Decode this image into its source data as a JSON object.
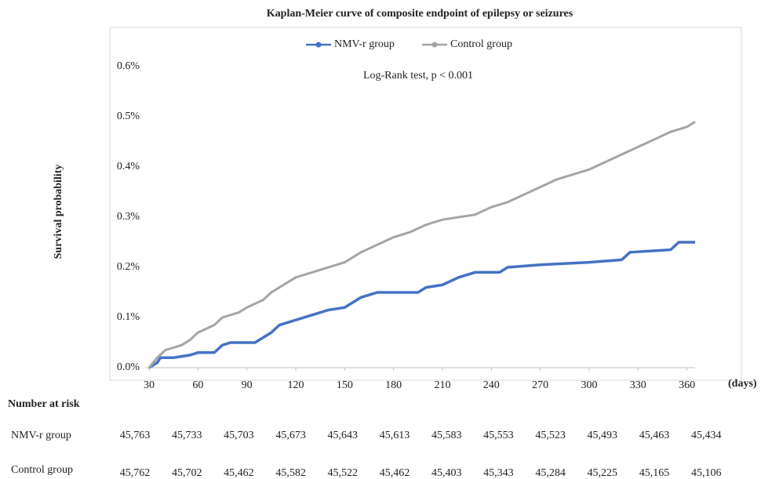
{
  "chart_data": {
    "type": "line",
    "title": "Kaplan-Meier curve of composite endpoint of epilepsy or seizures",
    "y_label": "Survival probability",
    "x_label": "(days)",
    "annotation": "Log-Rank test, p < 0.001",
    "legend": "top",
    "xlim": [
      30,
      365
    ],
    "xticks": [
      30,
      60,
      90,
      120,
      150,
      180,
      210,
      240,
      270,
      300,
      330,
      360
    ],
    "ylim": [
      0,
      0.6
    ],
    "yticks": [
      {
        "value": 0,
        "label": "0.0%"
      },
      {
        "value": 0.1,
        "label": "0.1%"
      },
      {
        "value": 0.2,
        "label": "0.2%"
      },
      {
        "value": 0.3,
        "label": "0.3%"
      },
      {
        "value": 0.4,
        "label": "0.4%"
      },
      {
        "value": 0.5,
        "label": "0.5%"
      },
      {
        "value": 0.6,
        "label": "0.6%"
      }
    ],
    "series": [
      {
        "name": "NMV-r  group",
        "color": "#4472c4",
        "x": [
          30,
          35,
          37,
          45,
          55,
          60,
          70,
          75,
          80,
          95,
          100,
          105,
          110,
          120,
          130,
          140,
          150,
          160,
          170,
          195,
          200,
          210,
          220,
          230,
          245,
          250,
          270,
          300,
          320,
          325,
          350,
          355,
          365
        ],
        "values": [
          0,
          0.01,
          0.02,
          0.02,
          0.025,
          0.03,
          0.03,
          0.045,
          0.05,
          0.05,
          0.06,
          0.07,
          0.085,
          0.095,
          0.105,
          0.115,
          0.12,
          0.14,
          0.15,
          0.15,
          0.16,
          0.165,
          0.18,
          0.19,
          0.19,
          0.2,
          0.205,
          0.21,
          0.215,
          0.23,
          0.235,
          0.25,
          0.25
        ]
      },
      {
        "name": "Control group",
        "color": "#a5a5a5",
        "x": [
          30,
          35,
          40,
          50,
          55,
          60,
          70,
          75,
          85,
          90,
          100,
          105,
          115,
          120,
          130,
          140,
          150,
          160,
          170,
          180,
          190,
          200,
          210,
          230,
          240,
          250,
          260,
          270,
          280,
          290,
          300,
          310,
          320,
          330,
          340,
          350,
          360,
          365
        ],
        "values": [
          0,
          0.02,
          0.035,
          0.045,
          0.055,
          0.07,
          0.085,
          0.1,
          0.11,
          0.12,
          0.135,
          0.15,
          0.17,
          0.18,
          0.19,
          0.2,
          0.21,
          0.23,
          0.245,
          0.26,
          0.27,
          0.285,
          0.295,
          0.305,
          0.32,
          0.33,
          0.345,
          0.36,
          0.375,
          0.385,
          0.395,
          0.41,
          0.425,
          0.44,
          0.455,
          0.47,
          0.48,
          0.49
        ]
      }
    ]
  },
  "risk_table": {
    "title": "Number at risk",
    "rows": [
      {
        "label": "NMV-r group",
        "values": [
          "45,763",
          "45,733",
          "45,703",
          "45,673",
          "45,643",
          "45,613",
          "45,583",
          "45,553",
          "45,523",
          "45,493",
          "45,463",
          "45,434"
        ]
      },
      {
        "label": "Control group",
        "values": [
          "45,762",
          "45,702",
          "45,462",
          "45,582",
          "45,522",
          "45,462",
          "45,403",
          "45,343",
          "45,284",
          "45,225",
          "45,165",
          "45,106"
        ]
      }
    ]
  }
}
